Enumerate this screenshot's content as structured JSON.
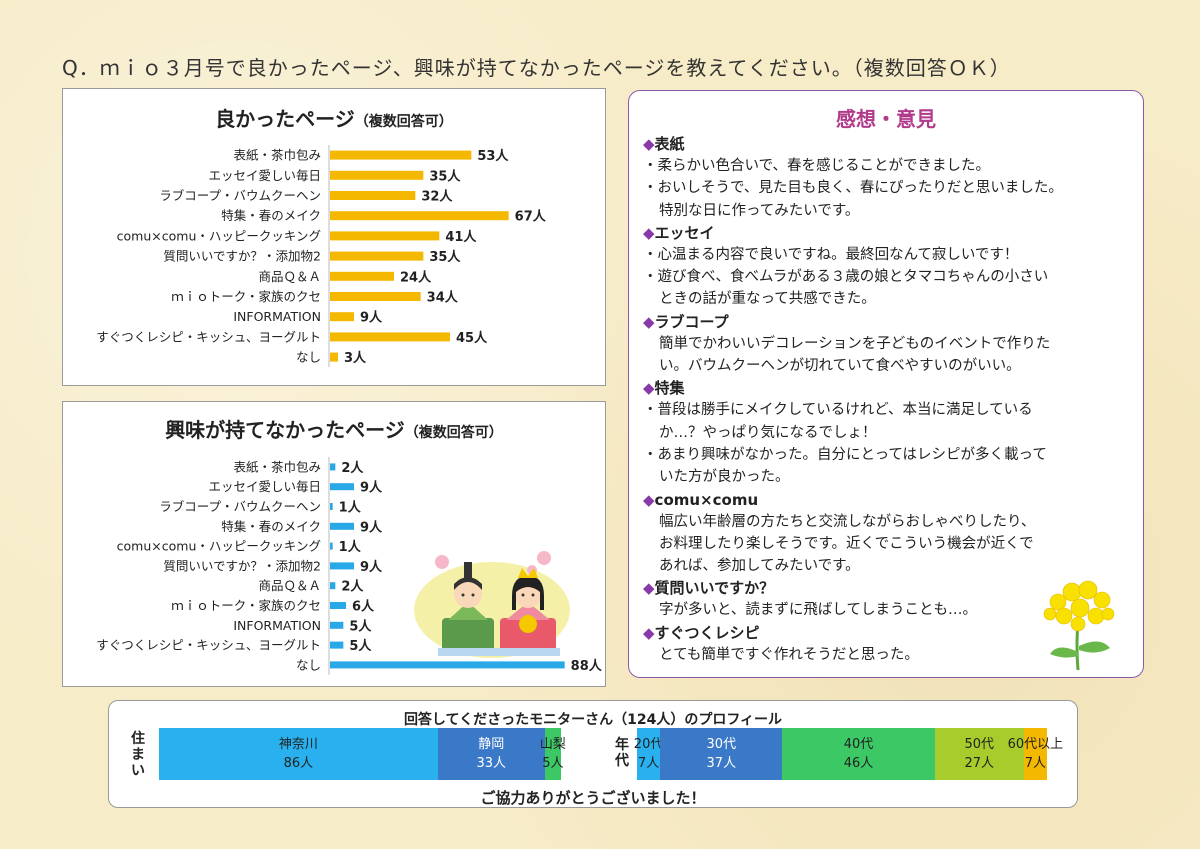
{
  "question": "Q．ｍｉｏ３月号で良かったページ、興味が持てなかったページを教えてください。（複数回答ＯＫ）",
  "charts": {
    "good": {
      "title": "良かったページ",
      "sub": "（複数回答可）"
    },
    "bad": {
      "title": "興味が持てなかったページ",
      "sub": "（複数回答可）"
    }
  },
  "chart_data": [
    {
      "type": "bar",
      "orientation": "horizontal",
      "title": "良かったページ（複数回答可）",
      "categories": [
        "表紙・茶巾包み",
        "エッセイ愛しい毎日",
        "ラブコープ・バウムクーヘン",
        "特集・春のメイク",
        "comu×comu・ハッピークッキング",
        "質問いいですか？・添加物2",
        "商品Ｑ＆Ａ",
        "ｍｉｏトーク・家族のクセ",
        "INFORMATION",
        "すぐつくレシピ・キッシュ、ヨーグルト",
        "なし"
      ],
      "values": [
        53,
        35,
        32,
        67,
        41,
        35,
        24,
        34,
        9,
        45,
        3
      ],
      "labels": [
        "53人",
        "35人",
        "32人",
        "67人",
        "41人",
        "35人",
        "24人",
        "34人",
        "9人",
        "45人",
        "3人"
      ],
      "color": "#f5b800",
      "xlim": [
        0,
        90
      ],
      "grid": false
    },
    {
      "type": "bar",
      "orientation": "horizontal",
      "title": "興味が持てなかったページ（複数回答可）",
      "categories": [
        "表紙・茶巾包み",
        "エッセイ愛しい毎日",
        "ラブコープ・バウムクーヘン",
        "特集・春のメイク",
        "comu×comu・ハッピークッキング",
        "質問いいですか？・添加物2",
        "商品Ｑ＆Ａ",
        "ｍｉｏトーク・家族のクセ",
        "INFORMATION",
        "すぐつくレシピ・キッシュ、ヨーグルト",
        "なし"
      ],
      "values": [
        2,
        9,
        1,
        9,
        1,
        9,
        2,
        6,
        5,
        5,
        88
      ],
      "labels": [
        "2人",
        "9人",
        "1人",
        "9人",
        "1人",
        "9人",
        "2人",
        "6人",
        "5人",
        "5人",
        "88人"
      ],
      "color": "#29a8e8",
      "xlim": [
        0,
        90
      ],
      "grid": false
    },
    {
      "type": "bar",
      "orientation": "stacked-horizontal",
      "title": "回答してくださったモニターさん（124人）のプロフィール",
      "groups": [
        {
          "label": "住まい",
          "segments": [
            {
              "name": "神奈川",
              "value": 86,
              "label": "86人",
              "color": "#29b1ef"
            },
            {
              "name": "静岡",
              "value": 33,
              "label": "33人",
              "color": "#3a78c8"
            },
            {
              "name": "山梨",
              "value": 5,
              "label": "5人",
              "color": "#3cc864"
            }
          ]
        },
        {
          "label": "年代",
          "segments": [
            {
              "name": "20代",
              "value": 7,
              "label": "7人",
              "color": "#29b1ef"
            },
            {
              "name": "30代",
              "value": 37,
              "label": "37人",
              "color": "#3a78c8"
            },
            {
              "name": "40代",
              "value": 46,
              "label": "46人",
              "color": "#3cc864"
            },
            {
              "name": "50代",
              "value": 27,
              "label": "27人",
              "color": "#a8cc2c"
            },
            {
              "name": "60代以上",
              "value": 7,
              "label": "7人",
              "color": "#f5b800"
            }
          ]
        }
      ]
    }
  ],
  "comments": {
    "title": "感想・意見",
    "sections": [
      {
        "head": "表紙",
        "lines": [
          {
            "text": "・柔らかい色合いで、春を感じることができました。",
            "indent": false
          },
          {
            "text": "・おいしそうで、見た目も良く、春にぴったりだと思いました。",
            "indent": false
          },
          {
            "text": "特別な日に作ってみたいです。",
            "indent": true
          }
        ]
      },
      {
        "head": "エッセイ",
        "lines": [
          {
            "text": "・心温まる内容で良いですね。最終回なんて寂しいです！",
            "indent": false
          },
          {
            "text": "・遊び食べ、食べムラがある３歳の娘とタマコちゃんの小さい",
            "indent": false
          },
          {
            "text": "ときの話が重なって共感できた。",
            "indent": true
          }
        ]
      },
      {
        "head": "ラブコープ",
        "lines": [
          {
            "text": "簡単でかわいいデコレーションを子どものイベントで作りた",
            "indent": true
          },
          {
            "text": "い。バウムクーヘンが切れていて食べやすいのがいい。",
            "indent": true
          }
        ]
      },
      {
        "head": "特集",
        "lines": [
          {
            "text": "・普段は勝手にメイクしているけれど、本当に満足している",
            "indent": false
          },
          {
            "text": "か…？やっぱり気になるでしょ！",
            "indent": true
          },
          {
            "text": "・あまり興味がなかった。自分にとってはレシピが多く載って",
            "indent": false
          },
          {
            "text": "いた方が良かった。",
            "indent": true
          }
        ]
      },
      {
        "head": "comu×comu",
        "lines": [
          {
            "text": "幅広い年齢層の方たちと交流しながらおしゃべりしたり、",
            "indent": true
          },
          {
            "text": "お料理したり楽しそうです。近くでこういう機会が近くで",
            "indent": true
          },
          {
            "text": "あれば、参加してみたいです。",
            "indent": true
          }
        ]
      },
      {
        "head": "質問いいですか？",
        "lines": [
          {
            "text": "字が多いと、読まずに飛ばしてしまうことも…。",
            "indent": true
          }
        ]
      },
      {
        "head": "すぐつくレシピ",
        "lines": [
          {
            "text": "とても簡単ですぐ作れそうだと思った。",
            "indent": true
          }
        ]
      }
    ]
  },
  "profile": {
    "title": "回答してくださったモニターさん（124人）のプロフィール",
    "residence_label": "住まい",
    "age_label": "年代",
    "thanks": "ご協力ありがとうございました！"
  },
  "icons": [
    "bullet-diamond-icon",
    "hina-dolls-illustration",
    "rapeseed-flower-illustration"
  ],
  "colors": {
    "accent_purple": "#8a3aa8",
    "title_magenta": "#b23a8c",
    "good_bar": "#f5b800",
    "bad_bar": "#29a8e8"
  }
}
